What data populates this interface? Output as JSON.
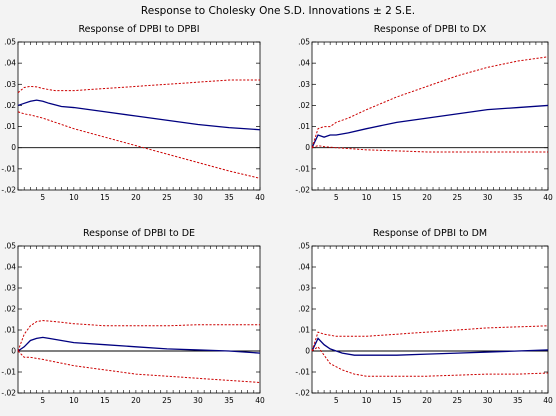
{
  "title": "Response to Cholesky One S.D. Innovations ± 2 S.E.",
  "colors": {
    "background": "#f3f3f3",
    "plot_bg": "#ffffff",
    "response": "#000080",
    "bands": "#cc0000",
    "zero_line": "#000000"
  },
  "chart_data": [
    {
      "type": "line",
      "title": "Response of DPBI to DPBI",
      "x_ticks": [
        "5",
        "10",
        "15",
        "20",
        "25",
        "30",
        "35",
        "40"
      ],
      "y_ticks": [
        ".05",
        ".04",
        ".03",
        ".02",
        ".01",
        "0",
        "-.01",
        "-.02"
      ],
      "xlim": [
        1,
        40
      ],
      "ylim": [
        -0.02,
        0.05
      ],
      "series": [
        {
          "role": "response",
          "points": [
            [
              1,
              0.02
            ],
            [
              2,
              0.021
            ],
            [
              3,
              0.022
            ],
            [
              4,
              0.0225
            ],
            [
              5,
              0.022
            ],
            [
              6,
              0.021
            ],
            [
              8,
              0.0195
            ],
            [
              10,
              0.019
            ],
            [
              15,
              0.017
            ],
            [
              20,
              0.015
            ],
            [
              25,
              0.013
            ],
            [
              30,
              0.011
            ],
            [
              35,
              0.0095
            ],
            [
              40,
              0.0085
            ]
          ]
        },
        {
          "role": "upper",
          "points": [
            [
              1,
              0.026
            ],
            [
              2,
              0.0285
            ],
            [
              3,
              0.029
            ],
            [
              4,
              0.0288
            ],
            [
              5,
              0.028
            ],
            [
              7,
              0.027
            ],
            [
              10,
              0.027
            ],
            [
              15,
              0.028
            ],
            [
              20,
              0.029
            ],
            [
              25,
              0.03
            ],
            [
              30,
              0.031
            ],
            [
              35,
              0.032
            ],
            [
              40,
              0.032
            ]
          ]
        },
        {
          "role": "lower",
          "points": [
            [
              1,
              0.017
            ],
            [
              2,
              0.016
            ],
            [
              3,
              0.0155
            ],
            [
              5,
              0.014
            ],
            [
              10,
              0.009
            ],
            [
              15,
              0.005
            ],
            [
              20,
              0.001
            ],
            [
              25,
              -0.003
            ],
            [
              30,
              -0.007
            ],
            [
              35,
              -0.011
            ],
            [
              40,
              -0.0145
            ]
          ]
        }
      ]
    },
    {
      "type": "line",
      "title": "Response of DPBI to DX",
      "x_ticks": [
        "5",
        "10",
        "15",
        "20",
        "25",
        "30",
        "35",
        "40"
      ],
      "y_ticks": [
        ".05",
        ".04",
        ".03",
        ".02",
        ".01",
        "0",
        "-.01",
        "-.02"
      ],
      "xlim": [
        1,
        40
      ],
      "ylim": [
        -0.02,
        0.05
      ],
      "series": [
        {
          "role": "response",
          "points": [
            [
              1,
              0.0
            ],
            [
              2,
              0.006
            ],
            [
              3,
              0.005
            ],
            [
              4,
              0.006
            ],
            [
              5,
              0.006
            ],
            [
              7,
              0.007
            ],
            [
              10,
              0.009
            ],
            [
              15,
              0.012
            ],
            [
              20,
              0.014
            ],
            [
              25,
              0.016
            ],
            [
              30,
              0.018
            ],
            [
              35,
              0.019
            ],
            [
              40,
              0.02
            ]
          ]
        },
        {
          "role": "upper",
          "points": [
            [
              1,
              0.0
            ],
            [
              2,
              0.009
            ],
            [
              3,
              0.01
            ],
            [
              4,
              0.01
            ],
            [
              5,
              0.012
            ],
            [
              7,
              0.014
            ],
            [
              10,
              0.018
            ],
            [
              15,
              0.024
            ],
            [
              20,
              0.029
            ],
            [
              25,
              0.034
            ],
            [
              30,
              0.038
            ],
            [
              35,
              0.041
            ],
            [
              40,
              0.043
            ]
          ]
        },
        {
          "role": "lower",
          "points": [
            [
              1,
              0.0
            ],
            [
              2,
              0.001
            ],
            [
              3,
              0.0005
            ],
            [
              5,
              0.0
            ],
            [
              10,
              -0.001
            ],
            [
              15,
              -0.0015
            ],
            [
              20,
              -0.002
            ],
            [
              25,
              -0.002
            ],
            [
              30,
              -0.002
            ],
            [
              35,
              -0.002
            ],
            [
              40,
              -0.002
            ]
          ]
        }
      ]
    },
    {
      "type": "line",
      "title": "Response of DPBI to DE",
      "x_ticks": [
        "5",
        "10",
        "15",
        "20",
        "25",
        "30",
        "35",
        "40"
      ],
      "y_ticks": [
        ".05",
        ".04",
        ".03",
        ".02",
        ".01",
        "0",
        "-.01",
        "-.02"
      ],
      "xlim": [
        1,
        40
      ],
      "ylim": [
        -0.02,
        0.05
      ],
      "series": [
        {
          "role": "response",
          "points": [
            [
              1,
              0.0
            ],
            [
              2,
              0.002
            ],
            [
              3,
              0.005
            ],
            [
              4,
              0.006
            ],
            [
              5,
              0.0065
            ],
            [
              6,
              0.006
            ],
            [
              8,
              0.005
            ],
            [
              10,
              0.004
            ],
            [
              15,
              0.003
            ],
            [
              20,
              0.002
            ],
            [
              25,
              0.001
            ],
            [
              30,
              0.0005
            ],
            [
              35,
              0.0
            ],
            [
              40,
              -0.001
            ]
          ]
        },
        {
          "role": "upper",
          "points": [
            [
              1,
              0.0
            ],
            [
              2,
              0.008
            ],
            [
              3,
              0.012
            ],
            [
              4,
              0.014
            ],
            [
              5,
              0.0145
            ],
            [
              7,
              0.014
            ],
            [
              10,
              0.013
            ],
            [
              15,
              0.012
            ],
            [
              20,
              0.012
            ],
            [
              25,
              0.012
            ],
            [
              30,
              0.0125
            ],
            [
              35,
              0.0125
            ],
            [
              40,
              0.0125
            ]
          ]
        },
        {
          "role": "lower",
          "points": [
            [
              1,
              0.0
            ],
            [
              2,
              -0.003
            ],
            [
              3,
              -0.003
            ],
            [
              5,
              -0.004
            ],
            [
              10,
              -0.007
            ],
            [
              15,
              -0.009
            ],
            [
              20,
              -0.011
            ],
            [
              25,
              -0.012
            ],
            [
              30,
              -0.013
            ],
            [
              35,
              -0.014
            ],
            [
              40,
              -0.015
            ]
          ]
        }
      ]
    },
    {
      "type": "line",
      "title": "Response of DPBI to DM",
      "x_ticks": [
        "5",
        "10",
        "15",
        "20",
        "25",
        "30",
        "35",
        "40"
      ],
      "y_ticks": [
        ".05",
        ".04",
        ".03",
        ".02",
        ".01",
        "0",
        "-.01",
        "-.02"
      ],
      "xlim": [
        1,
        40
      ],
      "ylim": [
        -0.02,
        0.05
      ],
      "series": [
        {
          "role": "response",
          "points": [
            [
              1,
              0.0
            ],
            [
              2,
              0.006
            ],
            [
              3,
              0.003
            ],
            [
              4,
              0.001
            ],
            [
              5,
              0.0
            ],
            [
              6,
              -0.001
            ],
            [
              8,
              -0.002
            ],
            [
              10,
              -0.002
            ],
            [
              15,
              -0.002
            ],
            [
              20,
              -0.0015
            ],
            [
              25,
              -0.001
            ],
            [
              30,
              -0.0005
            ],
            [
              35,
              0.0
            ],
            [
              40,
              0.0005
            ]
          ]
        },
        {
          "role": "upper",
          "points": [
            [
              1,
              0.0
            ],
            [
              2,
              0.009
            ],
            [
              3,
              0.008
            ],
            [
              5,
              0.007
            ],
            [
              7,
              0.007
            ],
            [
              10,
              0.007
            ],
            [
              15,
              0.008
            ],
            [
              20,
              0.009
            ],
            [
              25,
              0.01
            ],
            [
              30,
              0.011
            ],
            [
              35,
              0.0115
            ],
            [
              40,
              0.012
            ]
          ]
        },
        {
          "role": "lower",
          "points": [
            [
              1,
              0.0
            ],
            [
              2,
              0.002
            ],
            [
              3,
              -0.002
            ],
            [
              4,
              -0.006
            ],
            [
              6,
              -0.009
            ],
            [
              8,
              -0.011
            ],
            [
              10,
              -0.012
            ],
            [
              15,
              -0.012
            ],
            [
              20,
              -0.012
            ],
            [
              25,
              -0.0115
            ],
            [
              30,
              -0.011
            ],
            [
              35,
              -0.011
            ],
            [
              40,
              -0.0105
            ]
          ]
        }
      ]
    }
  ]
}
